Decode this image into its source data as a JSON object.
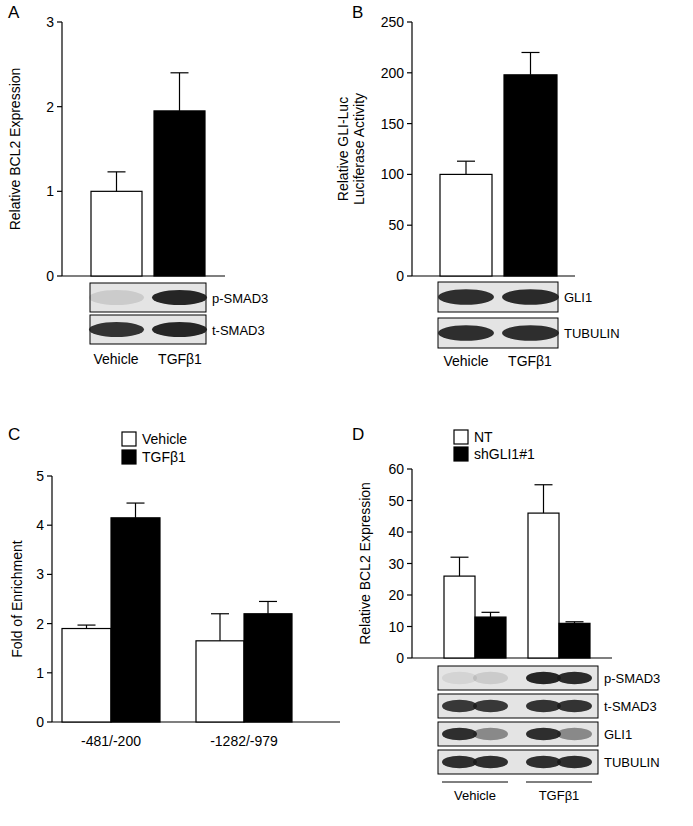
{
  "chart_data": [
    {
      "type": "bar",
      "title": "A",
      "ylabel": "Relative BCL2 Expression",
      "categories": [
        "Vehicle",
        "TGFβ1"
      ],
      "values": [
        1,
        1.95
      ],
      "errors": [
        0.23,
        0.45
      ],
      "colors": [
        "#ffffff",
        "#000000"
      ],
      "ylim": [
        0,
        3
      ],
      "yticks": [
        0,
        1,
        2,
        3
      ],
      "blot_labels": [
        "p-SMAD3",
        "t-SMAD3"
      ]
    },
    {
      "type": "bar",
      "title": "B",
      "ylabel": "Relative GLI-Luc\nLuciferase Activity",
      "categories": [
        "Vehicle",
        "TGFβ1"
      ],
      "values": [
        100,
        198
      ],
      "errors": [
        13,
        22
      ],
      "colors": [
        "#ffffff",
        "#000000"
      ],
      "ylim": [
        0,
        250
      ],
      "yticks": [
        0,
        50,
        100,
        150,
        200,
        250
      ],
      "blot_labels": [
        "GLI1",
        "TUBULIN"
      ]
    },
    {
      "type": "bar",
      "title": "C",
      "ylabel": "Fold of Enrichment",
      "categories": [
        "-481/-200",
        "-1282/-979"
      ],
      "series": [
        {
          "name": "Vehicle",
          "color": "#ffffff",
          "values": [
            1.9,
            1.65
          ],
          "errors": [
            0.07,
            0.55
          ]
        },
        {
          "name": "TGFβ1",
          "color": "#000000",
          "values": [
            4.15,
            2.2
          ],
          "errors": [
            0.3,
            0.25
          ]
        }
      ],
      "legend": "top",
      "ylim": [
        0,
        5
      ],
      "yticks": [
        0,
        1,
        2,
        3,
        4,
        5
      ]
    },
    {
      "type": "bar",
      "title": "D",
      "ylabel": "Relative BCL2 Expression",
      "categories": [
        "Vehicle",
        "TGFβ1"
      ],
      "series": [
        {
          "name": "NT",
          "color": "#ffffff",
          "values": [
            26,
            46
          ],
          "errors": [
            6,
            9
          ]
        },
        {
          "name": "shGLI1#1",
          "color": "#000000",
          "values": [
            13,
            11
          ],
          "errors": [
            1.5,
            0.5
          ]
        }
      ],
      "legend": "top",
      "ylim": [
        0,
        60
      ],
      "yticks": [
        0,
        10,
        20,
        30,
        40,
        50,
        60
      ],
      "blot_labels": [
        "p-SMAD3",
        "t-SMAD3",
        "GLI1",
        "TUBULIN"
      ]
    }
  ]
}
